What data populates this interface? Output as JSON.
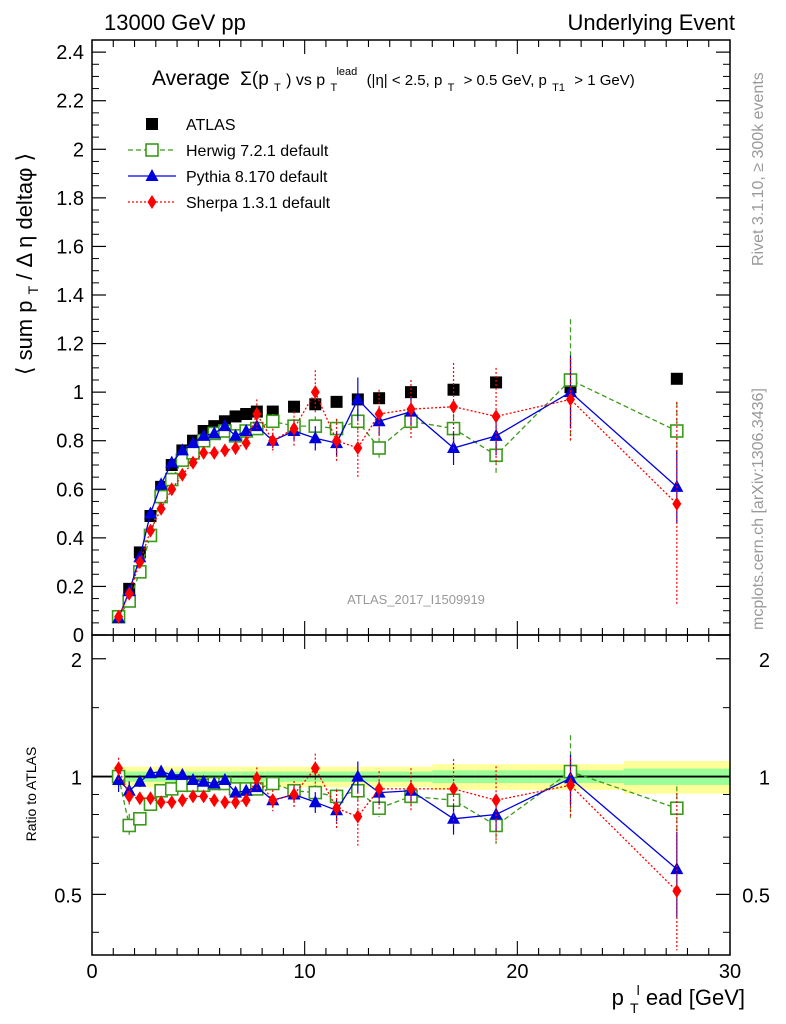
{
  "header": {
    "left": "13000 GeV pp",
    "right": "Underlying Event",
    "side_top": "Rivet 3.1.10, ≥ 300k events",
    "side_bottom": "mcplots.cern.ch [arXiv:1306.3436]",
    "analysis_id": "ATLAS_2017_I1509919"
  },
  "title": {
    "lead": "Average",
    "sigma": "Σ(p",
    "sub_T1": "T",
    "after_sigma": ") vs p",
    "sub_T2": "T",
    "sup_lead": "lead",
    "cuts_a": "(|η| < 2.5, p",
    "sub_T3": "T",
    "cuts_b": "> 0.5 GeV, p",
    "sub_T1b": "T1",
    "cuts_c": "> 1 GeV)"
  },
  "axes": {
    "ylabel_main": "⟨ sum p",
    "ylabel_sub": "T",
    "ylabel_rest": "/ Δ η deltaφ ⟩",
    "ylabel_ratio": "Ratio to ATLAS",
    "xlabel_p": "p",
    "xlabel_sub": "T",
    "xlabel_sup": "l",
    "xlabel_rest": "ead [GeV]"
  },
  "chart_data": {
    "type": "scatter",
    "xlim": [
      0,
      30
    ],
    "ylim": [
      0,
      2.45
    ],
    "ratio_ylim": [
      0.35,
      2.3
    ],
    "ratio_scale": "log",
    "x_ticks": [
      0,
      10,
      20,
      30
    ],
    "y_ticks": [
      "0",
      "0.2",
      "0.4",
      "0.6",
      "0.8",
      "1",
      "1.2",
      "1.4",
      "1.6",
      "1.8",
      "2",
      "2.2",
      "2.4"
    ],
    "ratio_ticks": [
      "0.5",
      "1",
      "2"
    ],
    "series": [
      {
        "name": "ATLAS",
        "color": "#000000",
        "marker": "square-filled",
        "x": [
          1.25,
          1.75,
          2.25,
          2.75,
          3.25,
          3.75,
          4.25,
          4.75,
          5.25,
          5.75,
          6.25,
          6.75,
          7.25,
          7.75,
          8.5,
          9.5,
          10.5,
          11.5,
          12.5,
          13.5,
          15,
          17,
          19,
          22.5,
          27.5
        ],
        "y": [
          0.075,
          0.19,
          0.34,
          0.49,
          0.61,
          0.7,
          0.76,
          0.8,
          0.84,
          0.86,
          0.88,
          0.9,
          0.91,
          0.92,
          0.92,
          0.94,
          0.95,
          0.96,
          0.97,
          0.975,
          1.0,
          1.01,
          1.04,
          1.02,
          1.055
        ]
      },
      {
        "name": "Herwig 7.2.1 default",
        "color": "#3a9a1a",
        "marker": "square-open",
        "line": "dashed",
        "x": [
          1.25,
          1.75,
          2.25,
          2.75,
          3.25,
          3.75,
          4.25,
          4.75,
          5.25,
          5.75,
          6.25,
          6.75,
          7.25,
          7.75,
          8.5,
          9.5,
          10.5,
          11.5,
          12.5,
          13.5,
          15,
          17,
          19,
          22.5,
          27.5
        ],
        "y": [
          0.075,
          0.14,
          0.26,
          0.41,
          0.57,
          0.64,
          0.72,
          0.75,
          0.8,
          0.83,
          0.84,
          0.82,
          0.84,
          0.85,
          0.88,
          0.86,
          0.86,
          0.85,
          0.88,
          0.77,
          0.88,
          0.85,
          0.74,
          1.05,
          0.84
        ],
        "err": [
          0.005,
          0.01,
          0.01,
          0.01,
          0.01,
          0.01,
          0.01,
          0.01,
          0.01,
          0.01,
          0.01,
          0.02,
          0.02,
          0.02,
          0.03,
          0.03,
          0.04,
          0.04,
          0.05,
          0.04,
          0.05,
          0.06,
          0.08,
          0.25,
          0.12
        ],
        "ratio": [
          1.0,
          0.75,
          0.78,
          0.85,
          0.92,
          0.93,
          0.95,
          0.95,
          0.95,
          0.96,
          0.96,
          0.93,
          0.93,
          0.93,
          0.96,
          0.92,
          0.91,
          0.89,
          0.92,
          0.83,
          0.89,
          0.87,
          0.75,
          1.03,
          0.83
        ]
      },
      {
        "name": "Pythia 8.170 default",
        "color": "#0000dd",
        "marker": "triangle-filled",
        "line": "solid",
        "x": [
          1.25,
          1.75,
          2.25,
          2.75,
          3.25,
          3.75,
          4.25,
          4.75,
          5.25,
          5.75,
          6.25,
          6.75,
          7.25,
          7.75,
          8.5,
          9.5,
          10.5,
          11.5,
          12.5,
          13.5,
          15,
          17,
          19,
          22.5,
          27.5
        ],
        "y": [
          0.07,
          0.18,
          0.32,
          0.5,
          0.62,
          0.71,
          0.76,
          0.79,
          0.82,
          0.83,
          0.86,
          0.82,
          0.84,
          0.86,
          0.8,
          0.84,
          0.81,
          0.79,
          0.97,
          0.88,
          0.92,
          0.77,
          0.82,
          1.0,
          0.61
        ],
        "err": [
          0.005,
          0.01,
          0.01,
          0.01,
          0.01,
          0.01,
          0.01,
          0.01,
          0.01,
          0.01,
          0.02,
          0.02,
          0.02,
          0.02,
          0.03,
          0.04,
          0.05,
          0.05,
          0.09,
          0.06,
          0.06,
          0.07,
          0.08,
          0.15,
          0.15
        ],
        "ratio": [
          0.98,
          0.92,
          0.97,
          1.02,
          1.03,
          1.01,
          1.01,
          0.98,
          0.97,
          0.96,
          0.98,
          0.91,
          0.92,
          0.94,
          0.87,
          0.9,
          0.86,
          0.82,
          1.0,
          0.91,
          0.92,
          0.78,
          0.8,
          0.99,
          0.58
        ]
      },
      {
        "name": "Sherpa 1.3.1 default",
        "color": "#ff0000",
        "marker": "diamond-filled",
        "line": "dotted",
        "x": [
          1.25,
          1.75,
          2.25,
          2.75,
          3.25,
          3.75,
          4.25,
          4.75,
          5.25,
          5.75,
          6.25,
          6.75,
          7.25,
          7.75,
          8.5,
          9.5,
          10.5,
          11.5,
          12.5,
          13.5,
          15,
          17,
          19,
          22.5,
          27.5
        ],
        "y": [
          0.075,
          0.17,
          0.3,
          0.43,
          0.52,
          0.6,
          0.66,
          0.71,
          0.75,
          0.75,
          0.76,
          0.77,
          0.79,
          0.91,
          0.8,
          0.85,
          1.0,
          0.8,
          0.77,
          0.91,
          0.93,
          0.94,
          0.9,
          0.97,
          0.54
        ],
        "err": [
          0.005,
          0.01,
          0.01,
          0.01,
          0.01,
          0.01,
          0.01,
          0.01,
          0.02,
          0.02,
          0.02,
          0.03,
          0.03,
          0.06,
          0.05,
          0.07,
          0.09,
          0.09,
          0.12,
          0.1,
          0.12,
          0.18,
          0.2,
          0.17,
          0.42
        ],
        "ratio": [
          1.05,
          0.89,
          0.88,
          0.88,
          0.86,
          0.86,
          0.87,
          0.89,
          0.89,
          0.87,
          0.86,
          0.86,
          0.87,
          0.99,
          0.87,
          0.9,
          1.05,
          0.83,
          0.79,
          0.93,
          0.93,
          0.93,
          0.87,
          0.95,
          0.51
        ]
      }
    ],
    "ratio_band_inner": 0.03,
    "ratio_band_outer": 0.06
  }
}
